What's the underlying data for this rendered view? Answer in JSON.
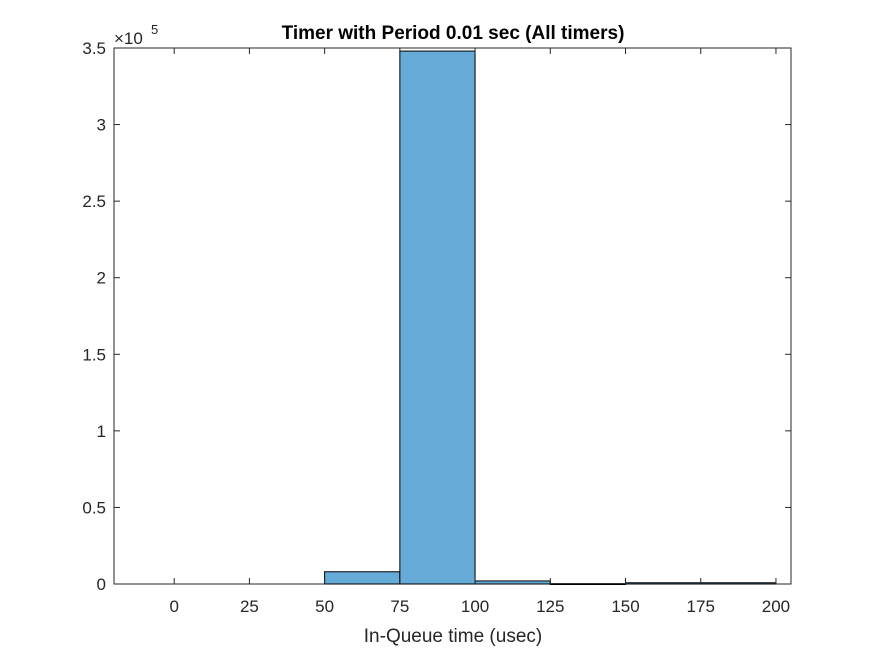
{
  "chart_data": {
    "type": "bar",
    "title": "Timer with Period 0.01 sec (All timers)",
    "xlabel": "In-Queue time (usec)",
    "ylabel": "",
    "xlim": [
      -20,
      205
    ],
    "ylim": [
      0,
      350000
    ],
    "x_ticks": [
      "0",
      "25",
      "50",
      "75",
      "100",
      "125",
      "150",
      "175",
      "200"
    ],
    "y_ticks": [
      "0",
      "0.5",
      "1",
      "1.5",
      "2",
      "2.5",
      "3",
      "3.5"
    ],
    "y_exponent": {
      "base": "×10",
      "power": "5"
    },
    "bin_edges": [
      50,
      75,
      100,
      125,
      150,
      175,
      200
    ],
    "values": [
      8000,
      348000,
      2000,
      200,
      800,
      800
    ],
    "grid": false,
    "bar_color": "#66aad7",
    "edge_color": "#000000"
  }
}
